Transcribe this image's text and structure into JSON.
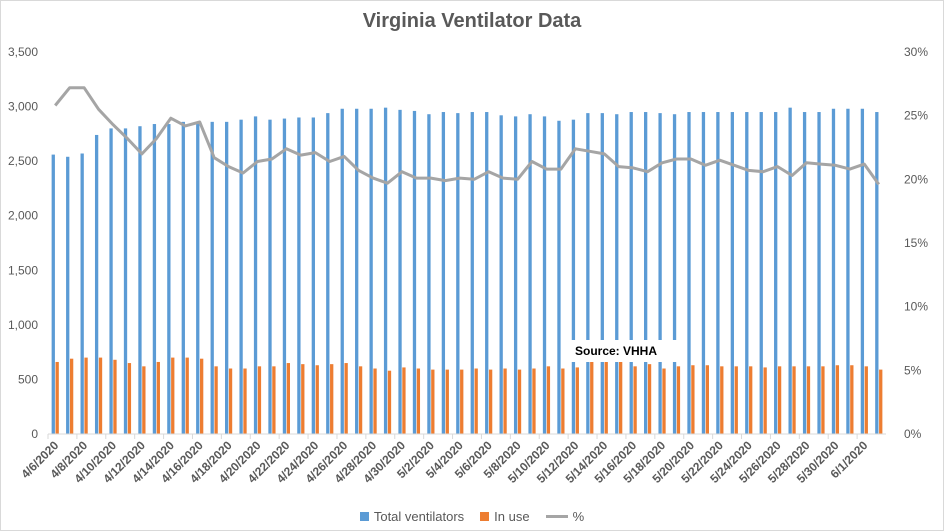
{
  "chart_data": {
    "type": "bar",
    "title": "Virginia Ventilator Data",
    "annotation": "Source: VHHA",
    "x": [
      "4/6/2020",
      "4/7/2020",
      "4/8/2020",
      "4/9/2020",
      "4/10/2020",
      "4/11/2020",
      "4/12/2020",
      "4/13/2020",
      "4/14/2020",
      "4/15/2020",
      "4/16/2020",
      "4/17/2020",
      "4/18/2020",
      "4/19/2020",
      "4/20/2020",
      "4/21/2020",
      "4/22/2020",
      "4/23/2020",
      "4/24/2020",
      "4/25/2020",
      "4/26/2020",
      "4/27/2020",
      "4/28/2020",
      "4/29/2020",
      "4/30/2020",
      "5/1/2020",
      "5/2/2020",
      "5/3/2020",
      "5/4/2020",
      "5/5/2020",
      "5/6/2020",
      "5/7/2020",
      "5/8/2020",
      "5/9/2020",
      "5/10/2020",
      "5/11/2020",
      "5/12/2020",
      "5/13/2020",
      "5/14/2020",
      "5/15/2020",
      "5/16/2020",
      "5/17/2020",
      "5/18/2020",
      "5/19/2020",
      "5/20/2020",
      "5/21/2020",
      "5/22/2020",
      "5/23/2020",
      "5/24/2020",
      "5/25/2020",
      "5/26/2020",
      "5/27/2020",
      "5/28/2020",
      "5/29/2020",
      "5/30/2020",
      "5/31/2020",
      "6/1/2020",
      "6/2/2020"
    ],
    "tick_labels": [
      "4/6/2020",
      "4/8/2020",
      "4/10/2020",
      "4/12/2020",
      "4/14/2020",
      "4/16/2020",
      "4/18/2020",
      "4/20/2020",
      "4/22/2020",
      "4/24/2020",
      "4/26/2020",
      "4/28/2020",
      "4/30/2020",
      "5/2/2020",
      "5/4/2020",
      "5/6/2020",
      "5/8/2020",
      "5/10/2020",
      "5/12/2020",
      "5/14/2020",
      "5/16/2020",
      "5/18/2020",
      "5/20/2020",
      "5/22/2020",
      "5/24/2020",
      "5/26/2020",
      "5/28/2020",
      "5/30/2020",
      "6/1/2020"
    ],
    "series": [
      {
        "name": "Total ventilators",
        "type": "bar",
        "axis": "left",
        "color": "#5b9bd5",
        "values": [
          2560,
          2540,
          2570,
          2740,
          2800,
          2800,
          2820,
          2840,
          2840,
          2860,
          2840,
          2860,
          2860,
          2880,
          2910,
          2880,
          2890,
          2900,
          2900,
          2940,
          2980,
          2980,
          2980,
          2990,
          2970,
          2960,
          2930,
          2950,
          2940,
          2950,
          2950,
          2920,
          2910,
          2930,
          2910,
          2870,
          2880,
          2940,
          2940,
          2930,
          2950,
          2950,
          2940,
          2930,
          2950,
          2950,
          2950,
          2950,
          2950,
          2950,
          2950,
          2990,
          2950,
          2950,
          2980,
          2980,
          2980,
          2950
        ]
      },
      {
        "name": "In use",
        "type": "bar",
        "axis": "left",
        "color": "#ed7d31",
        "values": [
          660,
          690,
          700,
          700,
          680,
          650,
          620,
          660,
          700,
          700,
          690,
          620,
          600,
          600,
          620,
          620,
          650,
          640,
          630,
          640,
          650,
          620,
          600,
          580,
          610,
          600,
          590,
          590,
          590,
          600,
          590,
          600,
          590,
          600,
          620,
          600,
          610,
          670,
          660,
          660,
          620,
          640,
          600,
          620,
          630,
          630,
          620,
          620,
          620,
          610,
          620,
          620,
          620,
          620,
          630,
          630,
          620,
          590
        ]
      },
      {
        "name": "%",
        "type": "line",
        "axis": "right",
        "color": "#a5a5a5",
        "values": [
          25.8,
          27.2,
          27.2,
          25.5,
          24.3,
          23.2,
          22.0,
          23.2,
          24.8,
          24.2,
          24.5,
          21.7,
          21.0,
          20.5,
          21.4,
          21.6,
          22.4,
          21.9,
          22.1,
          21.4,
          21.8,
          20.7,
          20.1,
          19.7,
          20.6,
          20.1,
          20.1,
          19.9,
          20.1,
          20.0,
          20.6,
          20.1,
          20.0,
          21.4,
          20.8,
          20.8,
          22.4,
          22.2,
          22.0,
          21.0,
          20.9,
          20.6,
          21.3,
          21.6,
          21.6,
          21.1,
          21.5,
          21.1,
          20.7,
          20.6,
          21.0,
          20.3,
          21.3,
          21.2,
          21.1,
          20.8,
          21.2,
          19.6
        ]
      }
    ],
    "ylim": [
      0,
      3500
    ],
    "yticks": [
      "0",
      "500",
      "1,000",
      "1,500",
      "2,000",
      "2,500",
      "3,000",
      "3,500"
    ],
    "y2lim": [
      0,
      30
    ],
    "y2ticks": [
      "0%",
      "5%",
      "10%",
      "15%",
      "20%",
      "25%",
      "30%"
    ],
    "grid": false,
    "legend_position": "bottom"
  }
}
